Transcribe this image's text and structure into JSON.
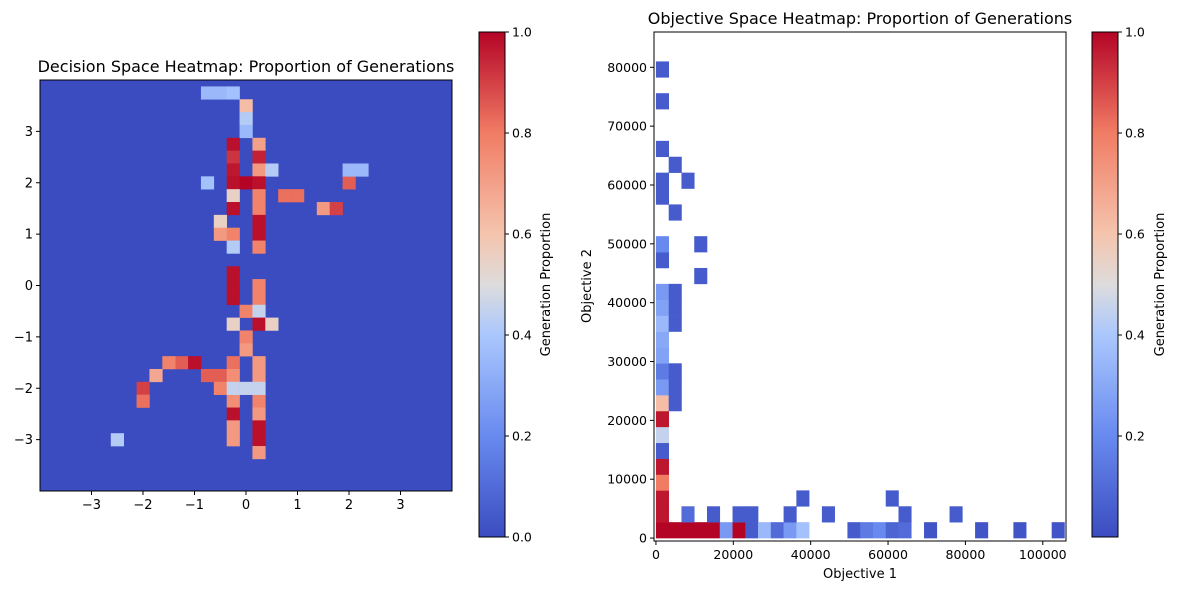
{
  "chart_data": [
    {
      "type": "heatmap",
      "title": "Decision Space Heatmap: Proportion of Generations",
      "xlabel": "",
      "ylabel": "",
      "xlim": [
        -4,
        4
      ],
      "ylim": [
        -4,
        4
      ],
      "xticks": [
        -3,
        -2,
        -1,
        0,
        1,
        2,
        3
      ],
      "yticks": [
        -3,
        -2,
        -1,
        0,
        1,
        2,
        3
      ],
      "xtick_labels": [
        "−3",
        "−2",
        "−1",
        "0",
        "1",
        "2",
        "3"
      ],
      "ytick_labels": [
        "−3",
        "−2",
        "−1",
        "0",
        "1",
        "2",
        "3"
      ],
      "bins": 32,
      "colormap": "coolwarm",
      "colorbar": {
        "label": "Generation Proportion",
        "range": [
          0,
          1
        ],
        "ticks": [
          "0.0",
          "0.2",
          "0.4",
          "0.6",
          "0.8",
          "1.0"
        ]
      },
      "cells": [
        {
          "x": 0,
          "y": 3.5,
          "v": 0.62
        },
        {
          "x": 0,
          "y": 3.25,
          "v": 0.42
        },
        {
          "x": 0,
          "y": 3.0,
          "v": 0.35
        },
        {
          "x": -0.25,
          "y": 2.75,
          "v": 0.98
        },
        {
          "x": 0.25,
          "y": 2.75,
          "v": 0.7
        },
        {
          "x": -0.25,
          "y": 2.5,
          "v": 0.92
        },
        {
          "x": 0.25,
          "y": 2.5,
          "v": 0.95
        },
        {
          "x": -0.25,
          "y": 2.25,
          "v": 0.97
        },
        {
          "x": 0.25,
          "y": 2.25,
          "v": 0.72
        },
        {
          "x": 0.5,
          "y": 2.25,
          "v": 0.42
        },
        {
          "x": -0.25,
          "y": 2.0,
          "v": 0.98
        },
        {
          "x": 0.0,
          "y": 2.0,
          "v": 1.0
        },
        {
          "x": 0.25,
          "y": 2.0,
          "v": 0.98
        },
        {
          "x": -0.25,
          "y": 1.75,
          "v": 0.55
        },
        {
          "x": 0.25,
          "y": 1.75,
          "v": 0.78
        },
        {
          "x": 0.75,
          "y": 1.75,
          "v": 0.82
        },
        {
          "x": 1.0,
          "y": 1.75,
          "v": 0.82
        },
        {
          "x": -0.25,
          "y": 1.5,
          "v": 0.98
        },
        {
          "x": 0.25,
          "y": 1.5,
          "v": 0.78
        },
        {
          "x": 1.5,
          "y": 1.5,
          "v": 0.72
        },
        {
          "x": 1.75,
          "y": 1.5,
          "v": 0.9
        },
        {
          "x": 2.0,
          "y": 2.0,
          "v": 0.85
        },
        {
          "x": 0.25,
          "y": 1.25,
          "v": 0.98
        },
        {
          "x": -0.5,
          "y": 1.25,
          "v": 0.55
        },
        {
          "x": -0.5,
          "y": 1.0,
          "v": 0.72
        },
        {
          "x": -0.25,
          "y": 1.0,
          "v": 0.78
        },
        {
          "x": 0.25,
          "y": 1.0,
          "v": 0.98
        },
        {
          "x": 0.25,
          "y": 0.75,
          "v": 0.78
        },
        {
          "x": -0.25,
          "y": 0.75,
          "v": 0.42
        },
        {
          "x": -0.25,
          "y": 0.25,
          "v": 0.98
        },
        {
          "x": -0.25,
          "y": 0.0,
          "v": 0.98
        },
        {
          "x": 0.25,
          "y": 0.0,
          "v": 0.78
        },
        {
          "x": -0.25,
          "y": -0.25,
          "v": 0.98
        },
        {
          "x": 0.25,
          "y": -0.25,
          "v": 0.78
        },
        {
          "x": 0.0,
          "y": -0.5,
          "v": 0.78
        },
        {
          "x": 0.25,
          "y": -0.5,
          "v": 0.45
        },
        {
          "x": -0.25,
          "y": -0.75,
          "v": 0.55
        },
        {
          "x": 0.25,
          "y": -0.75,
          "v": 0.98
        },
        {
          "x": 0.5,
          "y": -0.75,
          "v": 0.55
        },
        {
          "x": 0.0,
          "y": -1.0,
          "v": 0.78
        },
        {
          "x": 0.0,
          "y": -1.25,
          "v": 0.72
        },
        {
          "x": -0.25,
          "y": -1.5,
          "v": 0.82
        },
        {
          "x": 0.25,
          "y": -1.5,
          "v": 0.72
        },
        {
          "x": -1.25,
          "y": -1.5,
          "v": 0.85
        },
        {
          "x": -1.5,
          "y": -1.5,
          "v": 0.78
        },
        {
          "x": -1.0,
          "y": -1.5,
          "v": 0.98
        },
        {
          "x": -1.75,
          "y": -1.75,
          "v": 0.68
        },
        {
          "x": -0.75,
          "y": -1.75,
          "v": 0.85
        },
        {
          "x": -0.5,
          "y": -1.75,
          "v": 0.85
        },
        {
          "x": -0.25,
          "y": -1.75,
          "v": 0.75
        },
        {
          "x": 0.25,
          "y": -1.75,
          "v": 0.72
        },
        {
          "x": -0.5,
          "y": -2.0,
          "v": 0.78
        },
        {
          "x": -2.0,
          "y": -2.0,
          "v": 0.9
        },
        {
          "x": -2.0,
          "y": -2.25,
          "v": 0.82
        },
        {
          "x": -0.25,
          "y": -2.25,
          "v": 0.75
        },
        {
          "x": 0.25,
          "y": -2.25,
          "v": 0.78
        },
        {
          "x": -0.25,
          "y": -2.5,
          "v": 0.98
        },
        {
          "x": 0.25,
          "y": -2.5,
          "v": 0.72
        },
        {
          "x": -0.25,
          "y": -2.75,
          "v": 0.72
        },
        {
          "x": 0.25,
          "y": -2.75,
          "v": 0.98
        },
        {
          "x": -0.25,
          "y": -3.0,
          "v": 0.72
        },
        {
          "x": 0.25,
          "y": -3.0,
          "v": 0.98
        },
        {
          "x": 0.25,
          "y": -3.25,
          "v": 0.72
        },
        {
          "x": -2.5,
          "y": -3.0,
          "v": 0.42
        },
        {
          "x": -0.25,
          "y": -2.0,
          "v": 0.45
        },
        {
          "x": 0.0,
          "y": -2.0,
          "v": 0.45
        },
        {
          "x": 0.25,
          "y": -2.0,
          "v": 0.45
        },
        {
          "x": -0.75,
          "y": 2.0,
          "v": 0.38
        },
        {
          "x": 2.0,
          "y": 2.25,
          "v": 0.35
        },
        {
          "x": 2.25,
          "y": 2.25,
          "v": 0.35
        },
        {
          "x": -0.75,
          "y": 3.75,
          "v": 0.35
        },
        {
          "x": -0.5,
          "y": 3.75,
          "v": 0.35
        },
        {
          "x": -0.25,
          "y": 3.75,
          "v": 0.38
        }
      ]
    },
    {
      "type": "heatmap",
      "title": "Objective Space Heatmap: Proportion of Generations",
      "xlabel": "Objective 1",
      "ylabel": "Objective 2",
      "xlim": [
        -500,
        106000
      ],
      "ylim": [
        -500,
        86000
      ],
      "xticks": [
        0,
        20000,
        40000,
        60000,
        80000,
        100000
      ],
      "yticks": [
        0,
        10000,
        20000,
        30000,
        40000,
        50000,
        60000,
        70000,
        80000
      ],
      "xtick_labels": [
        "0",
        "20000",
        "40000",
        "60000",
        "80000",
        "100000"
      ],
      "ytick_labels": [
        "0",
        "10000",
        "20000",
        "30000",
        "40000",
        "50000",
        "60000",
        "70000",
        "80000"
      ],
      "cell_size": [
        3300,
        2700
      ],
      "colormap": "coolwarm",
      "colorbar": {
        "label": "Generation Proportion",
        "range": [
          0,
          1
        ],
        "ticks": [
          "0.2",
          "0.4",
          "0.6",
          "0.8",
          "1.0"
        ]
      },
      "cells": [
        {
          "x": 0,
          "y": 0,
          "v": 1.0
        },
        {
          "x": 3300,
          "y": 0,
          "v": 1.0
        },
        {
          "x": 6600,
          "y": 0,
          "v": 1.0
        },
        {
          "x": 9900,
          "y": 0,
          "v": 1.0
        },
        {
          "x": 13200,
          "y": 0,
          "v": 1.0
        },
        {
          "x": 16500,
          "y": 0,
          "v": 0.25
        },
        {
          "x": 19800,
          "y": 0,
          "v": 1.0
        },
        {
          "x": 23100,
          "y": 0,
          "v": 0.05
        },
        {
          "x": 26400,
          "y": 0,
          "v": 0.35
        },
        {
          "x": 29700,
          "y": 0,
          "v": 0.1
        },
        {
          "x": 33000,
          "y": 0,
          "v": 0.25
        },
        {
          "x": 36300,
          "y": 0,
          "v": 0.38
        },
        {
          "x": 49500,
          "y": 0,
          "v": 0.05
        },
        {
          "x": 52800,
          "y": 0,
          "v": 0.15
        },
        {
          "x": 56100,
          "y": 0,
          "v": 0.2
        },
        {
          "x": 59400,
          "y": 0,
          "v": 0.08
        },
        {
          "x": 62700,
          "y": 0,
          "v": 0.1
        },
        {
          "x": 69300,
          "y": 0,
          "v": 0.03
        },
        {
          "x": 82500,
          "y": 0,
          "v": 0.03
        },
        {
          "x": 92400,
          "y": 0,
          "v": 0.03
        },
        {
          "x": 102300,
          "y": 0,
          "v": 0.03
        },
        {
          "x": 6600,
          "y": 2700,
          "v": 0.1
        },
        {
          "x": 13200,
          "y": 2700,
          "v": 0.05
        },
        {
          "x": 19800,
          "y": 2700,
          "v": 0.05
        },
        {
          "x": 23100,
          "y": 2700,
          "v": 0.05
        },
        {
          "x": 33000,
          "y": 2700,
          "v": 0.05
        },
        {
          "x": 42900,
          "y": 2700,
          "v": 0.05
        },
        {
          "x": 62700,
          "y": 2700,
          "v": 0.05
        },
        {
          "x": 75900,
          "y": 2700,
          "v": 0.05
        },
        {
          "x": 36300,
          "y": 5400,
          "v": 0.05
        },
        {
          "x": 59400,
          "y": 5400,
          "v": 0.05
        },
        {
          "x": 0,
          "y": 2700,
          "v": 0.97
        },
        {
          "x": 0,
          "y": 5400,
          "v": 0.97
        },
        {
          "x": 0,
          "y": 8100,
          "v": 0.8
        },
        {
          "x": 0,
          "y": 10800,
          "v": 0.97
        },
        {
          "x": 0,
          "y": 13500,
          "v": 0.05
        },
        {
          "x": 0,
          "y": 16200,
          "v": 0.45
        },
        {
          "x": 0,
          "y": 18900,
          "v": 0.97
        },
        {
          "x": 0,
          "y": 21600,
          "v": 0.62
        },
        {
          "x": 0,
          "y": 24300,
          "v": 0.25
        },
        {
          "x": 0,
          "y": 27000,
          "v": 0.15
        },
        {
          "x": 0,
          "y": 29700,
          "v": 0.28
        },
        {
          "x": 0,
          "y": 32400,
          "v": 0.3
        },
        {
          "x": 0,
          "y": 35100,
          "v": 0.35
        },
        {
          "x": 0,
          "y": 37800,
          "v": 0.28
        },
        {
          "x": 0,
          "y": 40500,
          "v": 0.25
        },
        {
          "x": 3300,
          "y": 21600,
          "v": 0.05
        },
        {
          "x": 3300,
          "y": 24300,
          "v": 0.05
        },
        {
          "x": 3300,
          "y": 27000,
          "v": 0.05
        },
        {
          "x": 3300,
          "y": 35100,
          "v": 0.05
        },
        {
          "x": 3300,
          "y": 37800,
          "v": 0.05
        },
        {
          "x": 3300,
          "y": 40500,
          "v": 0.05
        },
        {
          "x": 0,
          "y": 45900,
          "v": 0.05
        },
        {
          "x": 0,
          "y": 48600,
          "v": 0.2
        },
        {
          "x": 9900,
          "y": 43200,
          "v": 0.05
        },
        {
          "x": 9900,
          "y": 48600,
          "v": 0.05
        },
        {
          "x": 0,
          "y": 56700,
          "v": 0.05
        },
        {
          "x": 0,
          "y": 59400,
          "v": 0.05
        },
        {
          "x": 3300,
          "y": 54000,
          "v": 0.05
        },
        {
          "x": 6600,
          "y": 59400,
          "v": 0.05
        },
        {
          "x": 3300,
          "y": 62100,
          "v": 0.05
        },
        {
          "x": 0,
          "y": 64800,
          "v": 0.05
        },
        {
          "x": 0,
          "y": 72900,
          "v": 0.05
        },
        {
          "x": 0,
          "y": 78300,
          "v": 0.05
        }
      ]
    }
  ]
}
